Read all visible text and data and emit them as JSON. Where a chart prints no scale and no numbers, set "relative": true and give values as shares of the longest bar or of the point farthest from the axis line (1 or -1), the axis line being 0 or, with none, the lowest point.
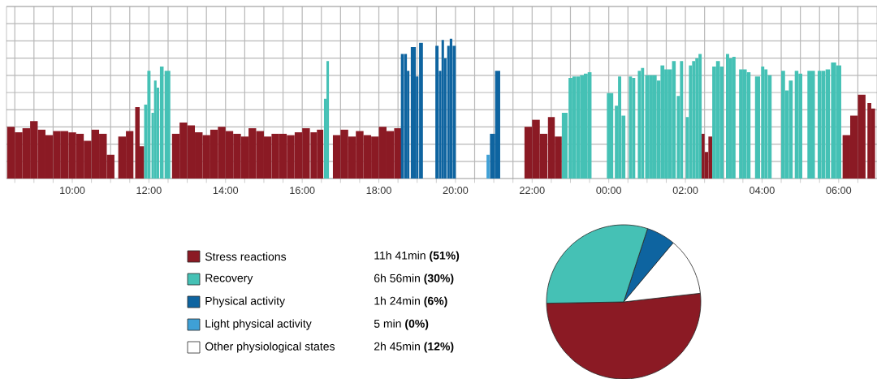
{
  "chart_data": [
    {
      "type": "bar",
      "relative": true,
      "grid": true,
      "xlim": [
        "2000-01-01T08:17",
        "2000-01-02T07:00"
      ],
      "xticks": [
        {
          "value": "2000-01-01T08:30",
          "label": null
        },
        {
          "value": "2000-01-01T09:00",
          "label": null
        },
        {
          "value": "2000-01-01T09:30",
          "label": null
        },
        {
          "value": "2000-01-01T10:00",
          "label": "10:00"
        },
        {
          "value": "2000-01-01T10:30",
          "label": null
        },
        {
          "value": "2000-01-01T11:00",
          "label": null
        },
        {
          "value": "2000-01-01T11:30",
          "label": null
        },
        {
          "value": "2000-01-01T12:00",
          "label": "12:00"
        },
        {
          "value": "2000-01-01T12:30",
          "label": null
        },
        {
          "value": "2000-01-01T13:00",
          "label": null
        },
        {
          "value": "2000-01-01T13:30",
          "label": null
        },
        {
          "value": "2000-01-01T14:00",
          "label": "14:00"
        },
        {
          "value": "2000-01-01T14:30",
          "label": null
        },
        {
          "value": "2000-01-01T15:00",
          "label": null
        },
        {
          "value": "2000-01-01T15:30",
          "label": null
        },
        {
          "value": "2000-01-01T16:00",
          "label": "16:00"
        },
        {
          "value": "2000-01-01T16:30",
          "label": null
        },
        {
          "value": "2000-01-01T17:00",
          "label": null
        },
        {
          "value": "2000-01-01T17:30",
          "label": null
        },
        {
          "value": "2000-01-01T18:00",
          "label": "18:00"
        },
        {
          "value": "2000-01-01T18:30",
          "label": null
        },
        {
          "value": "2000-01-01T19:00",
          "label": null
        },
        {
          "value": "2000-01-01T19:30",
          "label": null
        },
        {
          "value": "2000-01-01T20:00",
          "label": "20:00"
        },
        {
          "value": "2000-01-01T20:30",
          "label": null
        },
        {
          "value": "2000-01-01T21:00",
          "label": null
        },
        {
          "value": "2000-01-01T21:30",
          "label": null
        },
        {
          "value": "2000-01-01T22:00",
          "label": "22:00"
        },
        {
          "value": "2000-01-01T22:30",
          "label": null
        },
        {
          "value": "2000-01-01T23:00",
          "label": null
        },
        {
          "value": "2000-01-01T23:30",
          "label": null
        },
        {
          "value": "2000-01-02T00:00",
          "label": "00:00"
        },
        {
          "value": "2000-01-02T00:30",
          "label": null
        },
        {
          "value": "2000-01-02T01:00",
          "label": null
        },
        {
          "value": "2000-01-02T01:30",
          "label": null
        },
        {
          "value": "2000-01-02T02:00",
          "label": "02:00"
        },
        {
          "value": "2000-01-02T02:30",
          "label": null
        },
        {
          "value": "2000-01-02T03:00",
          "label": null
        },
        {
          "value": "2000-01-02T03:30",
          "label": null
        },
        {
          "value": "2000-01-02T04:00",
          "label": "04:00"
        },
        {
          "value": "2000-01-02T04:30",
          "label": null
        },
        {
          "value": "2000-01-02T05:00",
          "label": null
        },
        {
          "value": "2000-01-02T05:30",
          "label": null
        },
        {
          "value": "2000-01-02T06:00",
          "label": "06:00"
        },
        {
          "value": "2000-01-02T06:30",
          "label": null
        }
      ],
      "series": [
        {
          "color": "#8b1a24",
          "x": [
            "2000-01-01T08:24",
            "2000-01-01T08:36",
            "2000-01-01T08:48",
            "2000-01-01T09:00",
            "2000-01-01T09:12",
            "2000-01-01T09:24",
            "2000-01-01T09:36",
            "2000-01-01T09:48",
            "2000-01-01T10:00",
            "2000-01-01T10:12",
            "2000-01-01T10:24",
            "2000-01-01T10:36",
            "2000-01-01T10:48",
            "2000-01-01T11:00",
            "2000-01-01T11:18",
            "2000-01-01T11:30",
            "2000-01-01T11:42",
            "2000-01-01T11:49",
            "2000-01-01T12:42",
            "2000-01-01T12:54",
            "2000-01-01T13:06",
            "2000-01-01T13:18",
            "2000-01-01T13:30",
            "2000-01-01T13:42",
            "2000-01-01T13:54",
            "2000-01-01T14:06",
            "2000-01-01T14:18",
            "2000-01-01T14:30",
            "2000-01-01T14:42",
            "2000-01-01T14:54",
            "2000-01-01T15:06",
            "2000-01-01T15:18",
            "2000-01-01T15:30",
            "2000-01-01T15:42",
            "2000-01-01T15:54",
            "2000-01-01T16:06",
            "2000-01-01T16:18",
            "2000-01-01T16:28",
            "2000-01-01T16:54",
            "2000-01-01T17:06",
            "2000-01-01T17:18",
            "2000-01-01T17:30",
            "2000-01-01T17:42",
            "2000-01-01T17:54",
            "2000-01-01T18:06",
            "2000-01-01T18:18",
            "2000-01-01T18:30",
            "2000-01-01T21:54",
            "2000-01-01T22:06",
            "2000-01-01T22:18",
            "2000-01-01T22:30",
            "2000-01-01T22:41",
            "2000-01-02T02:27",
            "2000-01-02T02:33",
            "2000-01-02T02:39",
            "2000-01-02T06:12",
            "2000-01-02T06:24",
            "2000-01-02T06:36",
            "2000-01-02T06:48",
            "2000-01-02T06:54"
          ],
          "values": [
            0.37,
            0.33,
            0.36,
            0.41,
            0.35,
            0.31,
            0.34,
            0.34,
            0.33,
            0.32,
            0.27,
            0.35,
            0.32,
            0.17,
            0.3,
            0.34,
            0.51,
            0.23,
            0.32,
            0.4,
            0.38,
            0.33,
            0.31,
            0.35,
            0.37,
            0.34,
            0.32,
            0.3,
            0.36,
            0.34,
            0.3,
            0.32,
            0.32,
            0.31,
            0.33,
            0.36,
            0.33,
            0.35,
            0.31,
            0.35,
            0.3,
            0.34,
            0.31,
            0.3,
            0.37,
            0.34,
            0.36,
            0.37,
            0.42,
            0.32,
            0.44,
            0.3,
            0.32,
            0.19,
            0.3,
            0.31,
            0.45,
            0.6,
            0.54,
            0.5
          ]
        },
        {
          "color": "#45c1b5",
          "x": [
            "2000-01-01T11:55",
            "2000-01-01T12:00",
            "2000-01-01T12:06",
            "2000-01-01T12:10",
            "2000-01-01T12:14",
            "2000-01-01T12:20",
            "2000-01-01T12:29",
            "2000-01-01T16:36",
            "2000-01-01T16:40",
            "2000-01-01T22:51",
            "2000-01-01T23:00",
            "2000-01-01T23:06",
            "2000-01-01T23:12",
            "2000-01-01T23:18",
            "2000-01-01T23:24",
            "2000-01-01T23:30",
            "2000-01-02T00:02",
            "2000-01-02T00:12",
            "2000-01-02T00:17",
            "2000-01-02T00:23",
            "2000-01-02T00:34",
            "2000-01-02T00:39",
            "2000-01-02T00:48",
            "2000-01-02T00:53",
            "2000-01-02T01:00",
            "2000-01-02T01:06",
            "2000-01-02T01:12",
            "2000-01-02T01:18",
            "2000-01-02T01:24",
            "2000-01-02T01:30",
            "2000-01-02T01:36",
            "2000-01-02T01:42",
            "2000-01-02T01:49",
            "2000-01-02T01:54",
            "2000-01-02T02:03",
            "2000-01-02T02:08",
            "2000-01-02T02:13",
            "2000-01-02T02:18",
            "2000-01-02T02:23",
            "2000-01-02T02:45",
            "2000-01-02T02:51",
            "2000-01-02T02:57",
            "2000-01-02T03:06",
            "2000-01-02T03:11",
            "2000-01-02T03:16",
            "2000-01-02T03:27",
            "2000-01-02T03:33",
            "2000-01-02T03:39",
            "2000-01-02T03:53",
            "2000-01-02T04:01",
            "2000-01-02T04:06",
            "2000-01-02T04:12",
            "2000-01-02T04:33",
            "2000-01-02T04:39",
            "2000-01-02T04:45",
            "2000-01-02T04:54",
            "2000-01-02T05:00",
            "2000-01-02T05:17",
            "2000-01-02T05:30",
            "2000-01-02T05:36",
            "2000-01-02T05:43",
            "2000-01-02T05:52",
            "2000-01-02T06:00"
          ],
          "values": [
            0.53,
            0.77,
            0.47,
            0.7,
            0.65,
            0.8,
            0.77,
            0.57,
            0.84,
            0.47,
            0.72,
            0.73,
            0.73,
            0.74,
            0.75,
            0.76,
            0.61,
            0.52,
            0.73,
            0.45,
            0.73,
            0.72,
            0.77,
            0.79,
            0.74,
            0.74,
            0.74,
            0.7,
            0.81,
            0.78,
            0.78,
            0.84,
            0.59,
            0.84,
            0.44,
            0.81,
            0.84,
            0.86,
            0.89,
            0.8,
            0.84,
            0.8,
            0.89,
            0.86,
            0.87,
            0.78,
            0.78,
            0.76,
            0.73,
            0.8,
            0.78,
            0.74,
            0.77,
            0.63,
            0.7,
            0.77,
            0.75,
            0.77,
            0.77,
            0.77,
            0.78,
            0.83,
            0.81
          ]
        },
        {
          "color": "#0e64a0",
          "x": [
            "2000-01-01T18:37",
            "2000-01-01T18:42",
            "2000-01-01T18:46",
            "2000-01-01T18:52",
            "2000-01-01T18:56",
            "2000-01-01T19:00",
            "2000-01-01T19:06",
            "2000-01-01T19:31",
            "2000-01-01T19:36",
            "2000-01-01T19:40",
            "2000-01-01T19:44",
            "2000-01-01T19:49",
            "2000-01-01T19:53",
            "2000-01-01T19:58",
            "2000-01-01T20:58",
            "2000-01-01T21:06"
          ],
          "values": [
            0.89,
            0.89,
            0.77,
            0.94,
            0.94,
            0.73,
            0.97,
            0.95,
            0.77,
            0.99,
            0.86,
            0.95,
            1.0,
            0.95,
            0.32,
            0.77
          ]
        },
        {
          "color": "#3fa0d6",
          "x": [
            "2000-01-01T20:51"
          ],
          "values": [
            0.17
          ]
        }
      ]
    },
    {
      "type": "pie",
      "legend": "left",
      "categories": [
        "Stress reactions",
        "Recovery",
        "Physical activity",
        "Light physical activity",
        "Other physiological states"
      ],
      "values": [
        51,
        30,
        6,
        0,
        12
      ],
      "colors": [
        "#8b1a24",
        "#45c1b5",
        "#0e64a0",
        "#3fa0d6",
        "#ffffff"
      ],
      "value_labels": [
        "11h 41min **(51%)**",
        "6h 56min **(30%)**",
        "1h 24min **(6%)**",
        "5 min **(0%)**",
        "2h 45min **(12%)**"
      ]
    }
  ]
}
